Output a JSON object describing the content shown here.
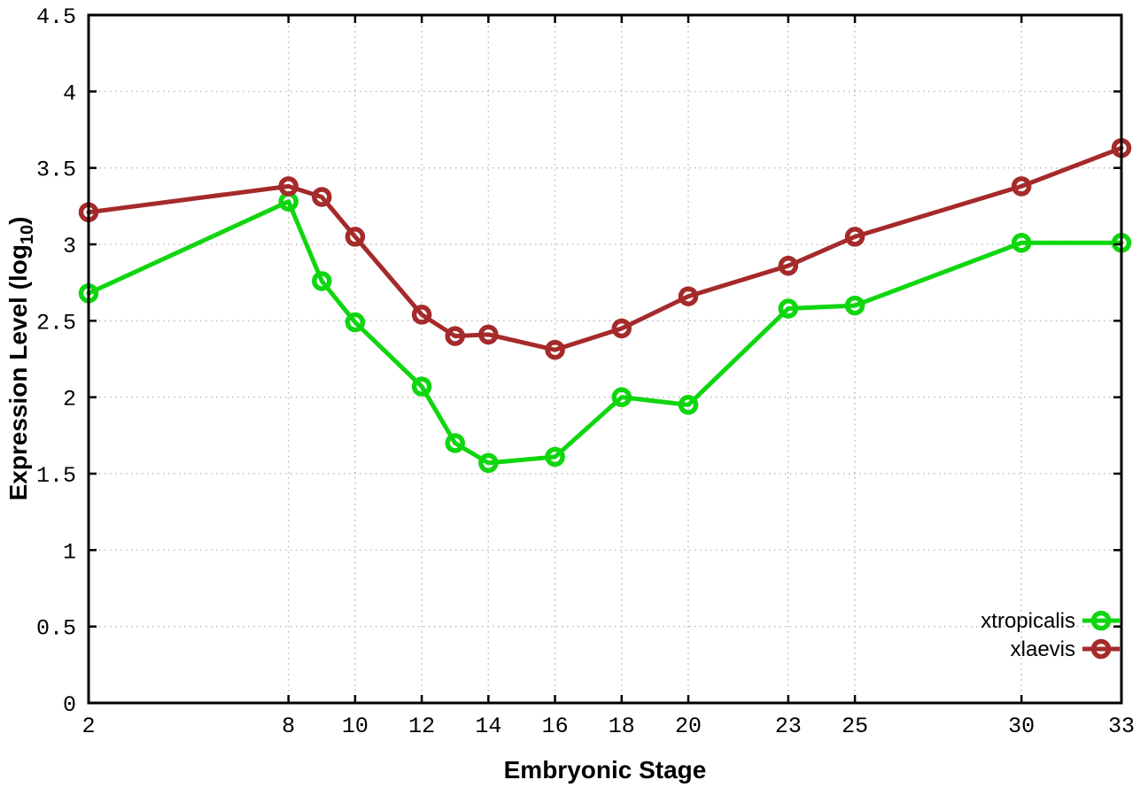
{
  "page": {
    "background": "#ffffff"
  },
  "chart_data": {
    "type": "line",
    "title": "",
    "xlabel": "Embryonic Stage",
    "ylabel": "Expression Level (log10)",
    "ylabel_parts": {
      "main": "Expression Level (log",
      "sub": "10",
      "end": ")"
    },
    "xlim": [
      2,
      33
    ],
    "ylim": [
      0,
      4.5
    ],
    "grid": true,
    "grid_style": "dotted",
    "grid_color": "#bbbbbb",
    "axis_color": "#000000",
    "legend_position": "inside bottom-right",
    "x": [
      2,
      8,
      9,
      10,
      12,
      13,
      14,
      16,
      18,
      20,
      23,
      25,
      30,
      33
    ],
    "xticks": [
      2,
      8,
      10,
      12,
      14,
      16,
      18,
      20,
      23,
      25,
      30,
      33
    ],
    "xtick_labels": [
      "2",
      "8",
      "10",
      "12",
      "14",
      "16",
      "18",
      "20",
      "23",
      "25",
      "30",
      "33"
    ],
    "yticks": [
      0,
      0.5,
      1,
      1.5,
      2,
      2.5,
      3,
      3.5,
      4,
      4.5
    ],
    "ytick_labels": [
      "0",
      "0.5",
      "1",
      "1.5",
      "2",
      "2.5",
      "3",
      "3.5",
      "4",
      "4.5"
    ],
    "series": [
      {
        "name": "xtropicalis",
        "color": "#0fd60f",
        "marker": "open-circle",
        "values": [
          2.68,
          3.28,
          2.76,
          2.49,
          2.07,
          1.7,
          1.57,
          1.61,
          2.0,
          1.95,
          2.58,
          2.6,
          3.01,
          3.01
        ]
      },
      {
        "name": "xlaevis",
        "color": "#a52a2a",
        "marker": "open-circle",
        "values": [
          3.21,
          3.38,
          3.31,
          3.05,
          2.54,
          2.4,
          2.41,
          2.31,
          2.45,
          2.66,
          2.86,
          3.05,
          3.38,
          3.63
        ]
      }
    ]
  }
}
